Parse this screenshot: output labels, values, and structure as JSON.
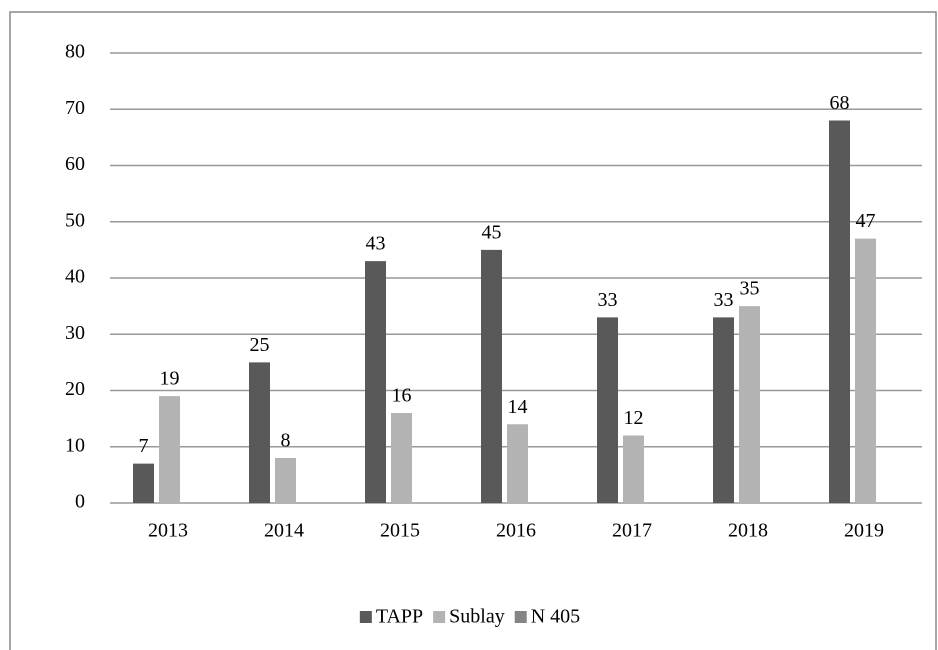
{
  "chart_data": {
    "type": "bar",
    "categories": [
      "2013",
      "2014",
      "2015",
      "2016",
      "2017",
      "2018",
      "2019"
    ],
    "series": [
      {
        "name": "TAPP",
        "color": "#595959",
        "values": [
          7,
          25,
          43,
          45,
          33,
          33,
          68
        ]
      },
      {
        "name": "Sublay",
        "color": "#b3b3b3",
        "values": [
          19,
          8,
          16,
          14,
          12,
          35,
          47
        ]
      },
      {
        "name": "N 405",
        "color": "#858585",
        "values": [
          null,
          null,
          null,
          null,
          null,
          null,
          null
        ]
      }
    ],
    "ylim": [
      0,
      80
    ],
    "yticks": [
      0,
      10,
      20,
      30,
      40,
      50,
      60,
      70,
      80
    ],
    "grid": true,
    "legend": "bottom"
  }
}
